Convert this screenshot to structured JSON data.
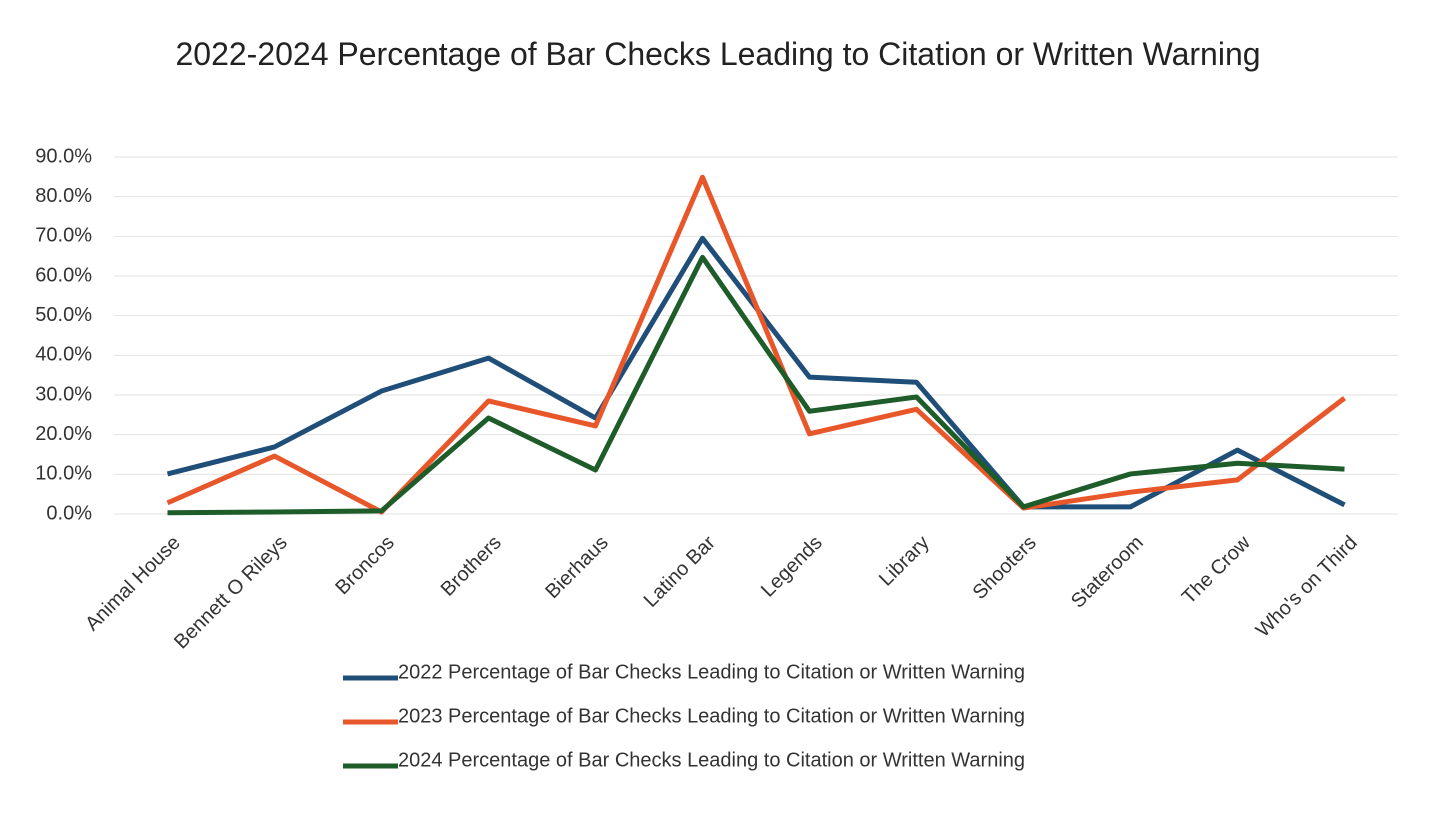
{
  "chart_data": {
    "type": "line",
    "title": "2022-2024 Percentage of Bar Checks Leading to Citation or Written Warning",
    "categories": [
      "Animal House",
      "Bennett O Rileys",
      "Broncos",
      "Brothers",
      "Bierhaus",
      "Latino Bar",
      "Legends",
      "Library",
      "Shooters",
      "Stateroom",
      "The Crow",
      "Who's on Third"
    ],
    "series": [
      {
        "name": "2022 Percentage of Bar Checks Leading to Citation or Written Warning",
        "color": "#1f4e79",
        "values": [
          10.1,
          16.9,
          31,
          39.3,
          24.2,
          69.5,
          34.5,
          33.2,
          1.8,
          1.8,
          16.1,
          2.3
        ]
      },
      {
        "name": "2023 Percentage of Bar Checks Leading to Citation or Written Warning",
        "color": "#e8572a",
        "values": [
          2.8,
          14.6,
          0.5,
          28.5,
          22.2,
          84.9,
          20.2,
          26.4,
          1.5,
          5.5,
          8.6,
          29.2
        ]
      },
      {
        "name": "2024 Percentage of Bar Checks Leading to Citation or Written Warning",
        "color": "#1e5c2a",
        "values": [
          0.3,
          0.5,
          0.8,
          24.2,
          11.1,
          64.7,
          25.9,
          29.5,
          1.8,
          10.1,
          12.8,
          11.3
        ]
      }
    ],
    "ylim": [
      0,
      90
    ],
    "yticks": [
      {
        "value": 0,
        "label": "0.0%"
      },
      {
        "value": 10,
        "label": "10.0%"
      },
      {
        "value": 20,
        "label": "20.0%"
      },
      {
        "value": 30,
        "label": "30.0%"
      },
      {
        "value": 40,
        "label": "40.0%"
      },
      {
        "value": 50,
        "label": "50.0%"
      },
      {
        "value": 60,
        "label": "60.0%"
      },
      {
        "value": 70,
        "label": "70.0%"
      },
      {
        "value": 80,
        "label": "80.0%"
      },
      {
        "value": 90,
        "label": "90.0%"
      }
    ],
    "grid": true,
    "legend": "bottom"
  }
}
